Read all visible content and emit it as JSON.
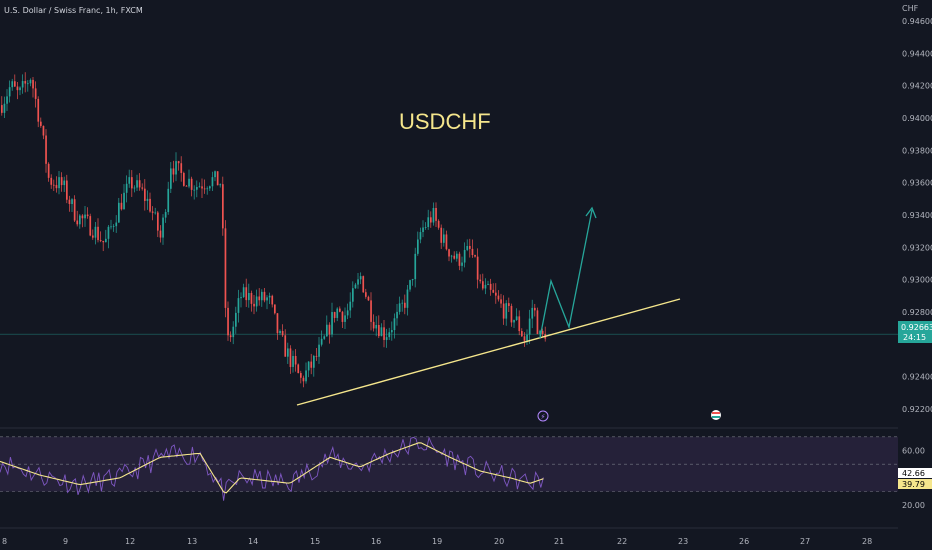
{
  "header": {
    "symbol_line": "U.S. Dollar / Swiss Franc, 1h, FXCM",
    "currency": "CHF"
  },
  "annotation": {
    "title": "USDCHF"
  },
  "colors": {
    "background": "#131722",
    "up": "#26a69a",
    "down": "#ef5350",
    "trendline": "#f5e68c",
    "projection": "#26a69a",
    "rsi_line": "#7e57c2",
    "rsi_ma": "#f5e68c",
    "rsi_band": "#2a2440"
  },
  "price_tag": {
    "value": "0.92663",
    "countdown": "24:15"
  },
  "rsi_tags": {
    "rsi": "42.66",
    "ma": "39.79"
  },
  "chart_data": {
    "type": "candlestick",
    "yaxis_labels": [
      "0.94600",
      "0.94400",
      "0.94200",
      "0.94000",
      "0.93800",
      "0.93600",
      "0.93400",
      "0.93200",
      "0.93000",
      "0.92800",
      "0.92400",
      "0.92200"
    ],
    "y_ticks": [
      0.946,
      0.944,
      0.942,
      0.94,
      0.938,
      0.936,
      0.934,
      0.932,
      0.93,
      0.928,
      0.924,
      0.922
    ],
    "ylim": [
      0.9212,
      0.9473
    ],
    "xaxis_labels": [
      "8",
      "9",
      "12",
      "13",
      "14",
      "15",
      "16",
      "19",
      "20",
      "21",
      "22",
      "23",
      "26",
      "27",
      "28"
    ],
    "current_price": 0.92663,
    "trendline": {
      "from": {
        "index": 0,
        "price": 0.9216
      },
      "to": {
        "index": 1,
        "price": 0.9284
      }
    },
    "rsi": {
      "levels": [
        70,
        50,
        30
      ],
      "axis_labels": [
        "60.00",
        "20.00"
      ],
      "axis_values": [
        60,
        20
      ],
      "ylim": [
        15,
        75
      ]
    }
  }
}
